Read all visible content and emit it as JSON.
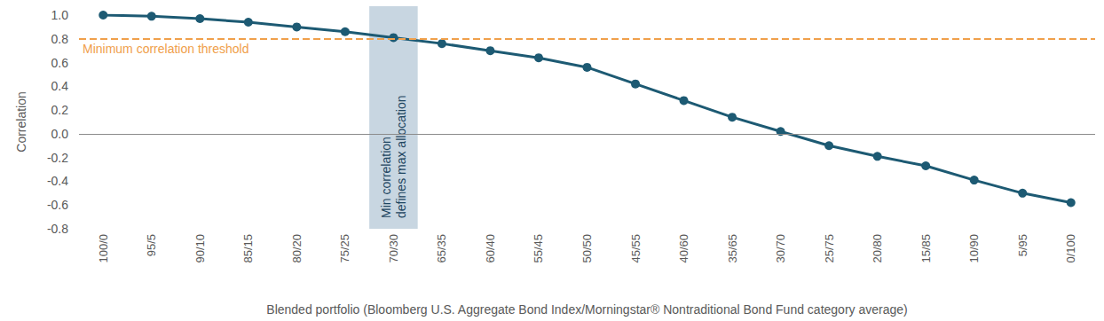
{
  "chart_data": {
    "type": "line",
    "x_label": "Blended portfolio (Bloomberg U.S. Aggregate Bond Index/Morningstar® Nontraditional Bond Fund category average)",
    "y_label": "Correlation",
    "categories": [
      "100/0",
      "95/5",
      "90/10",
      "85/15",
      "80/20",
      "75/25",
      "70/30",
      "65/35",
      "60/40",
      "55/45",
      "50/50",
      "45/55",
      "40/60",
      "35/65",
      "30/70",
      "25/75",
      "20/80",
      "15/85",
      "10/90",
      "5/95",
      "0/100"
    ],
    "values": [
      1.0,
      0.99,
      0.97,
      0.94,
      0.9,
      0.86,
      0.81,
      0.76,
      0.7,
      0.64,
      0.56,
      0.42,
      0.28,
      0.14,
      0.02,
      -0.1,
      -0.19,
      -0.27,
      -0.39,
      -0.5,
      -0.58
    ],
    "color": "#1d5a73",
    "marker": "circle",
    "ylim": [
      -0.8,
      1.0
    ],
    "yticks": [
      {
        "value": 1,
        "label": "1.0"
      },
      0.8,
      0.6,
      0.4,
      0.2,
      {
        "value": 0,
        "label": "0.0"
      },
      -0.2,
      -0.4,
      -0.6,
      -0.8
    ],
    "grid": false,
    "reference_line": {
      "value": 0.8,
      "label": "Minimum correlation threshold",
      "color": "#f0a04b",
      "line_style": "dashed"
    },
    "highlight": {
      "category": "70/30",
      "label_lines": [
        "Min correlation",
        "defines max allocation"
      ],
      "color": "#c8d6e1"
    }
  }
}
